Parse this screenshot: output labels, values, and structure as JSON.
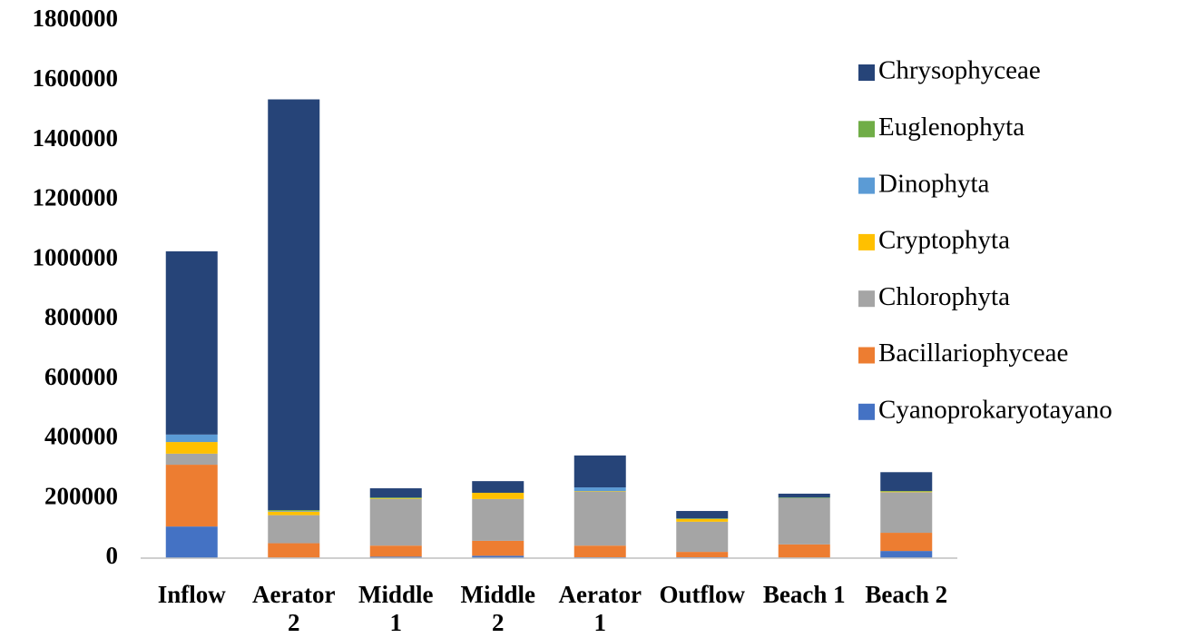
{
  "chart_data": {
    "type": "bar",
    "stacked": true,
    "categories": [
      "Inflow",
      "Aerator 2",
      "Middle 1",
      "Middle 2",
      "Aerator 1",
      "Outflow",
      "Beach 1",
      "Beach 2"
    ],
    "series": [
      {
        "name": "Cyanoprokaryotayano",
        "color": "#4472c4",
        "values": [
          106000,
          2000,
          5000,
          8000,
          3000,
          3000,
          2000,
          24000
        ]
      },
      {
        "name": "Bacillariophyceae",
        "color": "#ed7d31",
        "values": [
          207000,
          48000,
          37000,
          50000,
          39000,
          18000,
          44000,
          61000
        ]
      },
      {
        "name": "Chlorophyta",
        "color": "#a5a5a5",
        "values": [
          37000,
          94000,
          156000,
          140000,
          180000,
          101000,
          155000,
          136000
        ]
      },
      {
        "name": "Cryptophyta",
        "color": "#ffc000",
        "values": [
          39000,
          12000,
          2000,
          21000,
          2000,
          9000,
          0,
          2000
        ]
      },
      {
        "name": "Dinophyta",
        "color": "#5b9bd5",
        "values": [
          25000,
          2000,
          0,
          0,
          13000,
          0,
          0,
          0
        ]
      },
      {
        "name": "Euglenophyta",
        "color": "#70ad47",
        "values": [
          0,
          3000,
          3000,
          0,
          0,
          2000,
          2000,
          2000
        ]
      },
      {
        "name": "Chrysophyceae",
        "color": "#264478",
        "values": [
          614000,
          1376000,
          31000,
          39000,
          107000,
          25000,
          13000,
          63000
        ]
      }
    ],
    "ylim": [
      0,
      1800000
    ],
    "yticks": [
      0,
      200000,
      400000,
      600000,
      800000,
      1000000,
      1200000,
      1400000,
      1600000,
      1800000
    ],
    "grid": false,
    "legend": "right"
  }
}
